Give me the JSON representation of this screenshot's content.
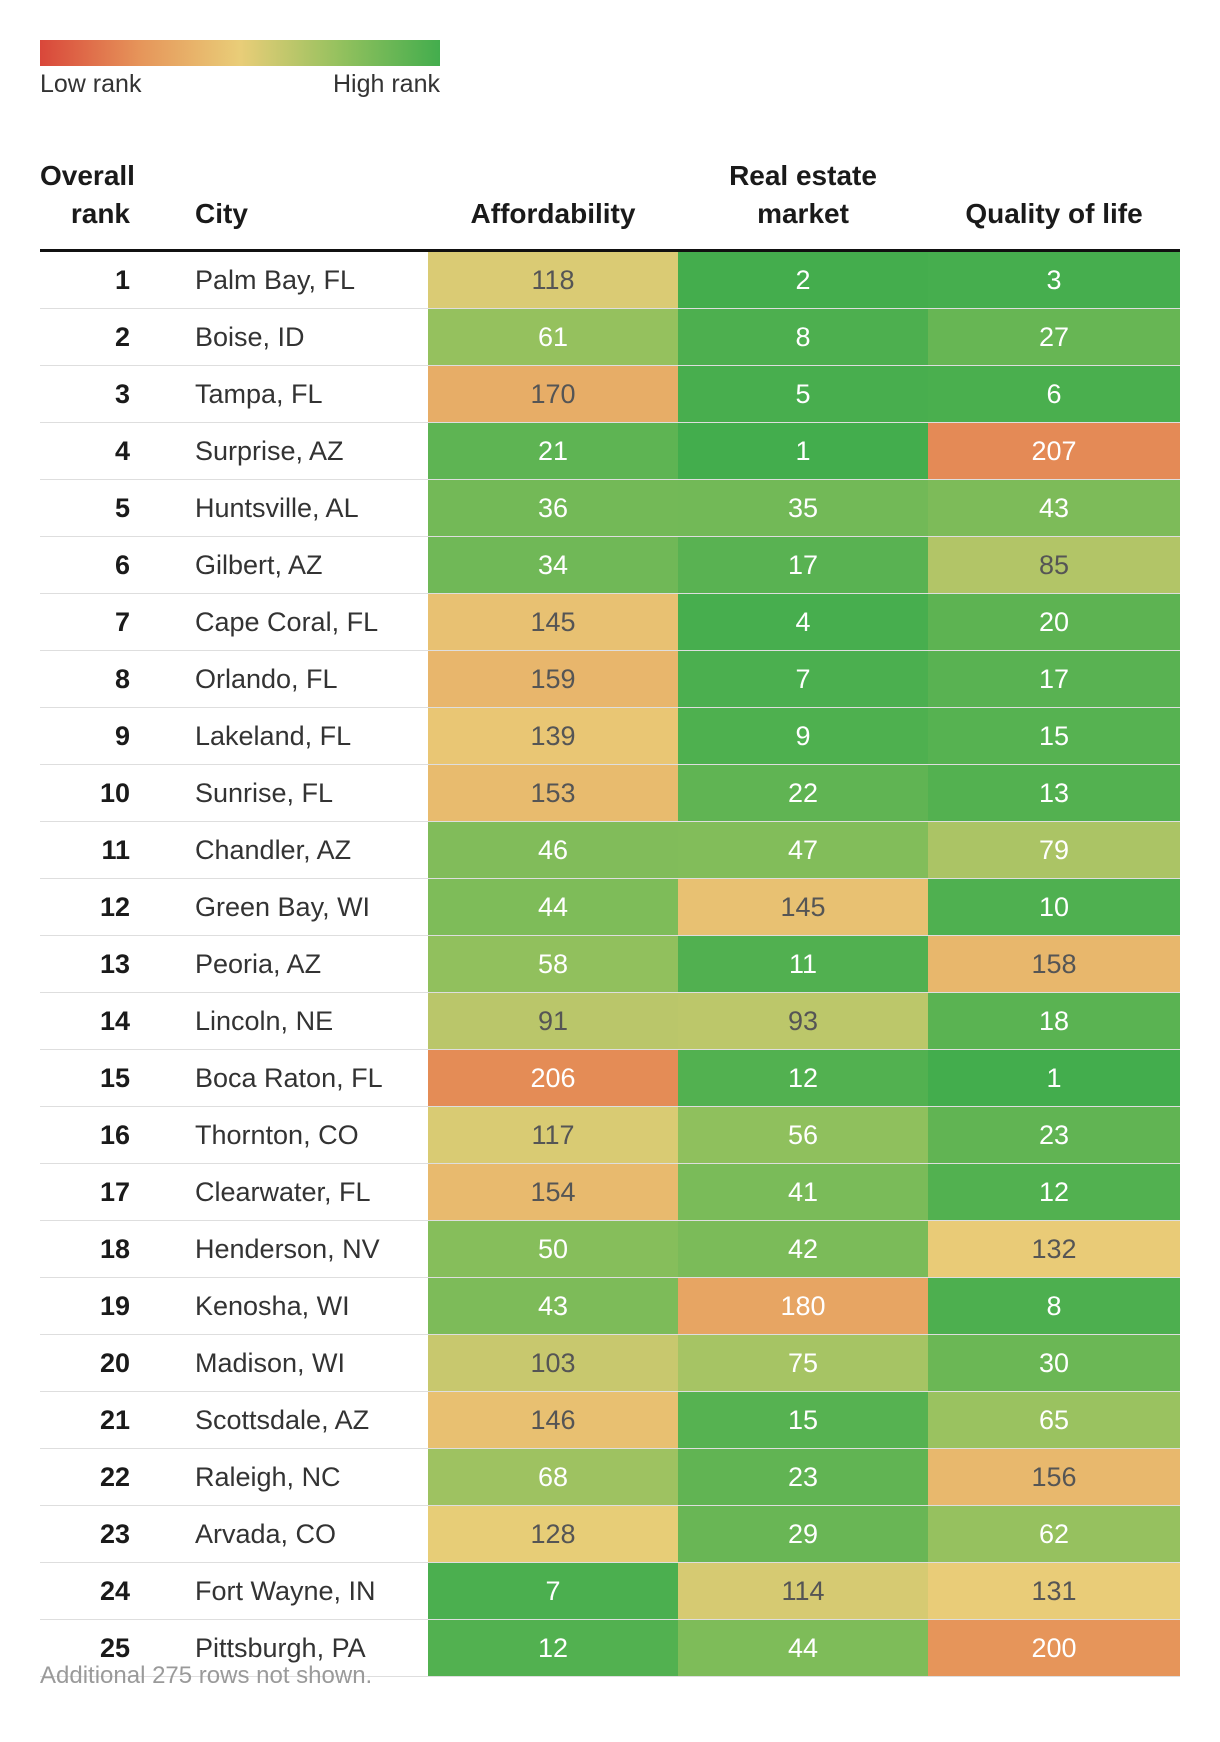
{
  "legend": {
    "low_label": "Low rank",
    "high_label": "High rank"
  },
  "header": {
    "rank_line1": "Overall",
    "rank_line2": "rank",
    "city": "City",
    "affordability": "Affordability",
    "real_estate_line1": "Real estate",
    "real_estate_line2": "market",
    "quality": "Quality of life"
  },
  "footnote": "Additional 275 rows not shown.",
  "chart_data": {
    "type": "table",
    "columns": [
      "Overall rank",
      "City",
      "Affordability",
      "Real estate market",
      "Quality of life"
    ],
    "color_scale": {
      "low": "#d9473a",
      "mid": "#e9cd78",
      "high": "#43ad4d",
      "domain": [
        1,
        250
      ]
    },
    "rows": [
      {
        "rank": "1",
        "city": "Palm Bay, FL",
        "affordability": 118,
        "real_estate": 2,
        "quality": 3
      },
      {
        "rank": "2",
        "city": "Boise, ID",
        "affordability": 61,
        "real_estate": 8,
        "quality": 27
      },
      {
        "rank": "3",
        "city": "Tampa, FL",
        "affordability": 170,
        "real_estate": 5,
        "quality": 6
      },
      {
        "rank": "4",
        "city": "Surprise, AZ",
        "affordability": 21,
        "real_estate": 1,
        "quality": 207
      },
      {
        "rank": "5",
        "city": "Huntsville, AL",
        "affordability": 36,
        "real_estate": 35,
        "quality": 43
      },
      {
        "rank": "6",
        "city": "Gilbert, AZ",
        "affordability": 34,
        "real_estate": 17,
        "quality": 85
      },
      {
        "rank": "7",
        "city": "Cape Coral, FL",
        "affordability": 145,
        "real_estate": 4,
        "quality": 20
      },
      {
        "rank": "8",
        "city": "Orlando, FL",
        "affordability": 159,
        "real_estate": 7,
        "quality": 17
      },
      {
        "rank": "9",
        "city": "Lakeland, FL",
        "affordability": 139,
        "real_estate": 9,
        "quality": 15
      },
      {
        "rank": "10",
        "city": "Sunrise, FL",
        "affordability": 153,
        "real_estate": 22,
        "quality": 13
      },
      {
        "rank": "11",
        "city": "Chandler, AZ",
        "affordability": 46,
        "real_estate": 47,
        "quality": 79
      },
      {
        "rank": "12",
        "city": "Green Bay, WI",
        "affordability": 44,
        "real_estate": 145,
        "quality": 10
      },
      {
        "rank": "13",
        "city": "Peoria, AZ",
        "affordability": 58,
        "real_estate": 11,
        "quality": 158
      },
      {
        "rank": "14",
        "city": "Lincoln, NE",
        "affordability": 91,
        "real_estate": 93,
        "quality": 18
      },
      {
        "rank": "15",
        "city": "Boca Raton, FL",
        "affordability": 206,
        "real_estate": 12,
        "quality": 1
      },
      {
        "rank": "16",
        "city": "Thornton, CO",
        "affordability": 117,
        "real_estate": 56,
        "quality": 23
      },
      {
        "rank": "17",
        "city": "Clearwater, FL",
        "affordability": 154,
        "real_estate": 41,
        "quality": 12
      },
      {
        "rank": "18",
        "city": "Henderson, NV",
        "affordability": 50,
        "real_estate": 42,
        "quality": 132
      },
      {
        "rank": "19",
        "city": "Kenosha, WI",
        "affordability": 43,
        "real_estate": 180,
        "quality": 8
      },
      {
        "rank": "20",
        "city": "Madison, WI",
        "affordability": 103,
        "real_estate": 75,
        "quality": 30
      },
      {
        "rank": "21",
        "city": "Scottsdale, AZ",
        "affordability": 146,
        "real_estate": 15,
        "quality": 65
      },
      {
        "rank": "22",
        "city": "Raleigh, NC",
        "affordability": 68,
        "real_estate": 23,
        "quality": 156
      },
      {
        "rank": "23",
        "city": "Arvada, CO",
        "affordability": 128,
        "real_estate": 29,
        "quality": 62
      },
      {
        "rank": "24",
        "city": "Fort Wayne, IN",
        "affordability": 7,
        "real_estate": 114,
        "quality": 131
      },
      {
        "rank": "25",
        "city": "Pittsburgh, PA",
        "affordability": 12,
        "real_estate": 44,
        "quality": 200
      }
    ]
  }
}
